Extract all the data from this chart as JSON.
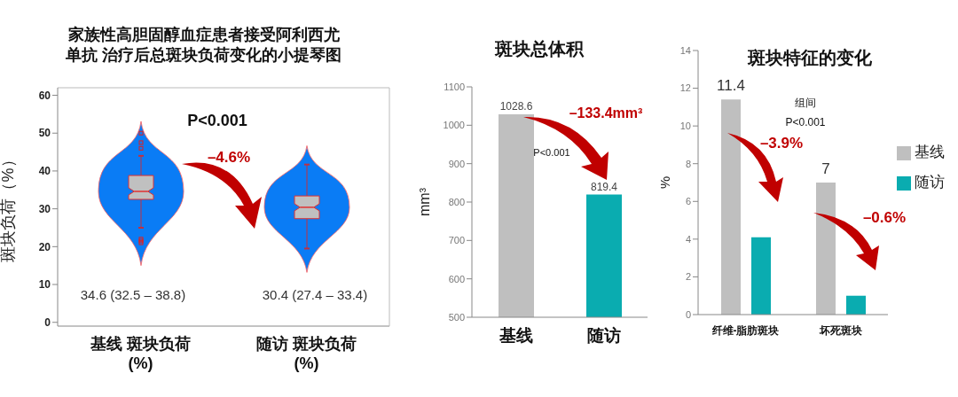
{
  "chart_data": [
    {
      "type": "box",
      "title": "家族性高胆固醇血症患者接受阿利西尤单抗 治疗后总斑块负荷变化的小提琴图",
      "ylabel": "斑块负荷（%）",
      "categories": [
        "基线 斑块负荷\n(%)",
        "随访 斑块负荷\n(%)"
      ],
      "color": "#c0c0c0",
      "boxes": [
        {
          "low": 25,
          "q1": 32.5,
          "median": 34.6,
          "q3": 38.8,
          "high": 44,
          "outliers": [
            21,
            21.5,
            22,
            46,
            47.5,
            50
          ]
        },
        {
          "low": 19.5,
          "q1": 27.4,
          "median": 30.4,
          "q3": 33.4,
          "high": 41.7
        }
      ],
      "ylim": [
        -1,
        62
      ],
      "yticks": [
        0,
        10,
        20,
        30,
        40,
        50,
        60
      ],
      "annotations": [
        "34.6 (32.5 – 38.8)",
        "30.4 (27.4 – 33.4)",
        "P<0.001",
        "–4.6%"
      ]
    },
    {
      "type": "bar",
      "title": "斑块总体积",
      "ylabel": "mm³",
      "categories": [
        "基线",
        "随访"
      ],
      "values": [
        1028.6,
        819.4
      ],
      "colors": [
        "#bfbfbf",
        "#0aacb0"
      ],
      "ylim": [
        500,
        1100
      ],
      "yticks": [
        500,
        600,
        700,
        800,
        900,
        1000,
        1100
      ],
      "data_labels": true,
      "annotations": [
        "–133.4mm³",
        "P<0.001"
      ]
    },
    {
      "type": "bar",
      "title": "斑块特征的变化",
      "ylabel": "%",
      "categories": [
        "纤维-脂肪斑块",
        "坏死斑块"
      ],
      "series": [
        {
          "name": "基线",
          "color": "#bfbfbf",
          "values": [
            11.4,
            7
          ],
          "value_labels": [
            "11.4",
            "7"
          ]
        },
        {
          "name": "随访",
          "color": "#0aacb0",
          "values": [
            4.1,
            1.0
          ]
        }
      ],
      "ylim": [
        0,
        14
      ],
      "yticks": [
        0,
        2,
        4,
        6,
        8,
        10,
        12,
        14
      ],
      "legend": "right",
      "annotations": [
        "组间",
        "P<0.001",
        "–3.9%",
        "–0.6%"
      ]
    }
  ]
}
